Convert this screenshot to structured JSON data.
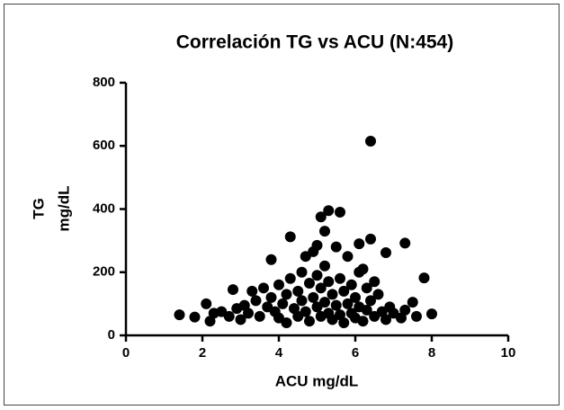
{
  "chart_data": {
    "type": "scatter",
    "title": "Correlación TG vs ACU (N:454)",
    "x_label": "ACU mg/dL",
    "y_label": [
      "TG",
      "mg/dL"
    ],
    "color": "#000000",
    "xlim": [
      0,
      10
    ],
    "xticks": [
      0,
      2,
      4,
      6,
      8,
      10
    ],
    "ylim": [
      0,
      800
    ],
    "yticks": [
      0,
      200,
      400,
      600,
      800
    ],
    "grid": false,
    "x": [
      1.4,
      1.8,
      2.1,
      2.2,
      2.3,
      2.5,
      2.7,
      2.8,
      2.9,
      3.0,
      3.1,
      3.2,
      3.3,
      3.4,
      3.5,
      3.6,
      3.7,
      3.8,
      3.8,
      3.9,
      4.0,
      4.0,
      4.1,
      4.2,
      4.2,
      4.3,
      4.3,
      4.4,
      4.5,
      4.5,
      4.6,
      4.6,
      4.7,
      4.7,
      4.8,
      4.8,
      4.9,
      4.9,
      5.0,
      5.0,
      5.0,
      5.1,
      5.1,
      5.1,
      5.2,
      5.2,
      5.2,
      5.3,
      5.3,
      5.3,
      5.4,
      5.4,
      5.5,
      5.5,
      5.6,
      5.6,
      5.6,
      5.7,
      5.7,
      5.8,
      5.8,
      5.9,
      5.9,
      6.0,
      6.0,
      6.1,
      6.1,
      6.1,
      6.2,
      6.2,
      6.3,
      6.3,
      6.4,
      6.4,
      6.4,
      6.5,
      6.5,
      6.6,
      6.7,
      6.8,
      6.8,
      6.9,
      7.0,
      7.2,
      7.3,
      7.3,
      7.5,
      7.6,
      7.8,
      8.0
    ],
    "y": [
      65,
      58,
      100,
      45,
      70,
      75,
      60,
      145,
      85,
      50,
      95,
      70,
      140,
      110,
      60,
      150,
      90,
      240,
      120,
      75,
      160,
      55,
      100,
      130,
      40,
      312,
      180,
      85,
      140,
      60,
      200,
      110,
      250,
      75,
      165,
      45,
      265,
      120,
      285,
      90,
      190,
      375,
      60,
      150,
      330,
      105,
      220,
      395,
      70,
      170,
      130,
      50,
      280,
      95,
      390,
      180,
      65,
      140,
      40,
      250,
      100,
      160,
      70,
      120,
      55,
      290,
      200,
      90,
      210,
      45,
      150,
      80,
      615,
      305,
      110,
      170,
      60,
      130,
      75,
      262,
      50,
      90,
      70,
      55,
      292,
      80,
      105,
      60,
      182,
      68
    ]
  }
}
